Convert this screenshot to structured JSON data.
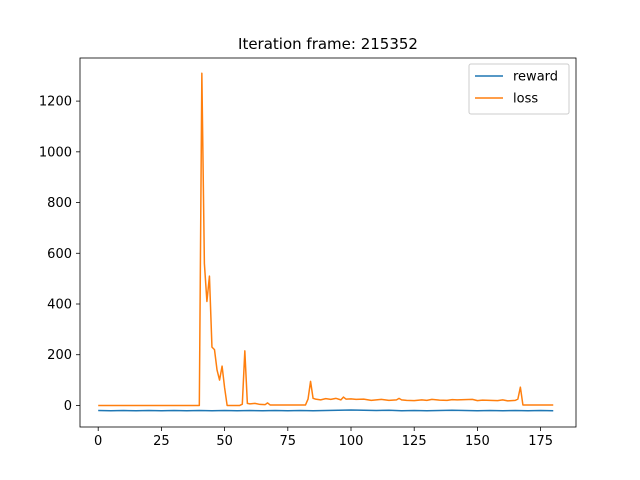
{
  "chart_data": {
    "type": "line",
    "title": "Iteration frame: 215352",
    "xlabel": "",
    "ylabel": "",
    "xlim": [
      -7.2,
      189
    ],
    "ylim": [
      -85,
      1370
    ],
    "xticks": [
      0,
      25,
      50,
      75,
      100,
      125,
      150,
      175
    ],
    "yticks": [
      0,
      200,
      400,
      600,
      800,
      1000,
      1200
    ],
    "legend_position": "top-right",
    "grid": false,
    "series": [
      {
        "name": "reward",
        "color": "#1f77b4",
        "x": [
          0,
          5,
          10,
          15,
          20,
          25,
          30,
          35,
          40,
          45,
          50,
          55,
          60,
          65,
          70,
          75,
          80,
          85,
          90,
          95,
          100,
          105,
          110,
          115,
          120,
          125,
          130,
          135,
          140,
          145,
          150,
          155,
          160,
          165,
          170,
          175,
          180
        ],
        "y": [
          -20,
          -21,
          -20,
          -21,
          -20,
          -21,
          -20,
          -21,
          -20,
          -21,
          -20,
          -21,
          -20,
          -21,
          -20,
          -21,
          -20,
          -21,
          -20,
          -19,
          -18,
          -19,
          -20,
          -19,
          -21,
          -20,
          -21,
          -20,
          -19,
          -20,
          -21,
          -20,
          -21,
          -20,
          -21,
          -20,
          -21
        ]
      },
      {
        "name": "loss",
        "color": "#ff7f0e",
        "x": [
          0,
          10,
          20,
          30,
          40,
          41,
          42,
          43,
          44,
          45,
          46,
          47,
          48,
          49,
          50,
          51,
          55,
          56,
          57,
          58,
          59,
          60,
          62,
          64,
          66,
          67,
          68,
          70,
          75,
          80,
          82,
          83,
          84,
          85,
          86,
          88,
          90,
          92,
          94,
          96,
          97,
          98,
          100,
          102,
          105,
          108,
          110,
          112,
          115,
          118,
          119,
          120,
          122,
          125,
          128,
          130,
          132,
          135,
          138,
          140,
          142,
          145,
          148,
          150,
          152,
          155,
          158,
          160,
          162,
          165,
          166,
          167,
          168,
          170,
          175,
          180
        ],
        "y": [
          0,
          0,
          0,
          0,
          0,
          1310,
          560,
          410,
          510,
          230,
          220,
          140,
          100,
          155,
          70,
          0,
          0,
          0,
          5,
          215,
          8,
          6,
          8,
          4,
          3,
          10,
          2,
          2,
          2,
          2,
          2,
          25,
          95,
          28,
          25,
          22,
          27,
          24,
          28,
          22,
          33,
          25,
          26,
          24,
          25,
          20,
          22,
          24,
          20,
          22,
          28,
          22,
          20,
          19,
          22,
          20,
          24,
          21,
          20,
          23,
          22,
          23,
          24,
          19,
          21,
          20,
          19,
          22,
          18,
          20,
          25,
          72,
          2,
          2,
          2,
          2
        ]
      }
    ]
  }
}
